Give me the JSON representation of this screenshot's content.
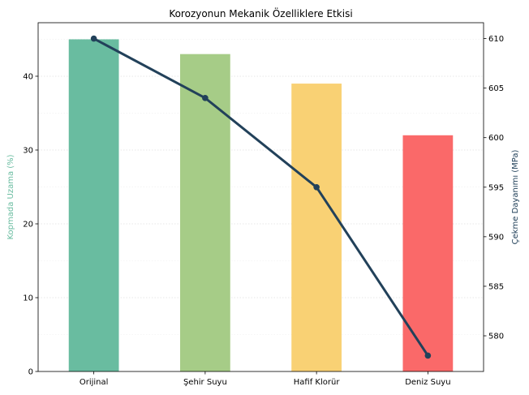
{
  "chart_data": {
    "type": "bar",
    "title": "Korozyonun Mekanik Özelliklere Etkisi",
    "categories": [
      "Orijinal",
      "Şehir Suyu",
      "Hafif Klorür",
      "Deniz Suyu"
    ],
    "series": [
      {
        "name": "Kopmada Uzama (%)",
        "type": "bar",
        "axis": "left",
        "values": [
          45,
          43,
          39,
          32
        ],
        "colors": [
          "#69bca0",
          "#a6cc87",
          "#f9d174",
          "#fa6969"
        ]
      },
      {
        "name": "Çekme Dayanımı (MPa)",
        "type": "line",
        "axis": "right",
        "values": [
          610,
          604,
          595,
          578
        ],
        "color": "#22415a"
      }
    ],
    "ylabel": "Kopmada Uzama (%)",
    "ylabel_color": "#69bca0",
    "ylim": [
      0,
      47.25
    ],
    "yticks": [
      0,
      10,
      20,
      30,
      40
    ],
    "y2label": "Çekme Dayanımı (MPa)",
    "y2label_color": "#22415a",
    "y2lim": [
      576.4,
      611.6
    ],
    "y2ticks": [
      580,
      585,
      590,
      595,
      600,
      605,
      610
    ],
    "grid": "horizontal-dotted"
  }
}
